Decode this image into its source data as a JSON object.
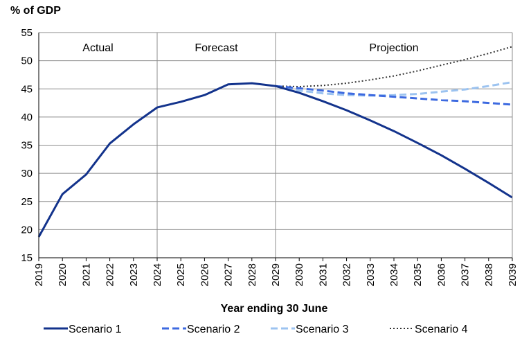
{
  "chart_data": {
    "type": "line",
    "ylabel": "% of GDP",
    "xlabel": "Year ending 30 June",
    "ylim": [
      15,
      55
    ],
    "yticks": [
      15,
      20,
      25,
      30,
      35,
      40,
      45,
      50,
      55
    ],
    "grid": true,
    "legend": "bottom",
    "categories": [
      "2019",
      "2020",
      "2021",
      "2022",
      "2023",
      "2024",
      "2025",
      "2026",
      "2027",
      "2028",
      "2029",
      "2030",
      "2031",
      "2032",
      "2033",
      "2034",
      "2035",
      "2036",
      "2037",
      "2038",
      "2039"
    ],
    "regions": [
      {
        "label": "Actual",
        "from": "2019",
        "to": "2024"
      },
      {
        "label": "Forecast",
        "from": "2024",
        "to": "2029"
      },
      {
        "label": "Projection",
        "from": "2029",
        "to": "2039"
      }
    ],
    "series": [
      {
        "name": "Scenario 1",
        "color": "#13338c",
        "dash": "solid",
        "x": [
          "2019",
          "2020",
          "2021",
          "2022",
          "2023",
          "2024",
          "2025",
          "2026",
          "2027",
          "2028",
          "2029",
          "2030",
          "2031",
          "2032",
          "2033",
          "2034",
          "2035",
          "2036",
          "2037",
          "2038",
          "2039"
        ],
        "values": [
          18.7,
          26.3,
          29.8,
          35.3,
          38.7,
          41.7,
          42.7,
          43.9,
          45.8,
          46.0,
          45.5,
          44.3,
          42.8,
          41.2,
          39.4,
          37.5,
          35.4,
          33.2,
          30.8,
          28.3,
          25.7
        ]
      },
      {
        "name": "Scenario 2",
        "color": "#3d6ae0",
        "dash": "dashed",
        "x": [
          "2029",
          "2030",
          "2031",
          "2032",
          "2033",
          "2034",
          "2035",
          "2036",
          "2037",
          "2038",
          "2039"
        ],
        "values": [
          45.5,
          45.1,
          44.7,
          44.2,
          43.9,
          43.6,
          43.3,
          43.0,
          42.8,
          42.5,
          42.2
        ]
      },
      {
        "name": "Scenario 3",
        "color": "#9cc3f0",
        "dash": "dashed",
        "x": [
          "2029",
          "2030",
          "2031",
          "2032",
          "2033",
          "2034",
          "2035",
          "2036",
          "2037",
          "2038",
          "2039"
        ],
        "values": [
          45.5,
          44.7,
          44.2,
          43.9,
          43.8,
          43.9,
          44.1,
          44.5,
          44.9,
          45.5,
          46.2
        ]
      },
      {
        "name": "Scenario 4",
        "color": "#333333",
        "dash": "dotted",
        "x": [
          "2029",
          "2030",
          "2031",
          "2032",
          "2033",
          "2034",
          "2035",
          "2036",
          "2037",
          "2038",
          "2039"
        ],
        "values": [
          45.5,
          45.4,
          45.6,
          46.0,
          46.6,
          47.3,
          48.2,
          49.2,
          50.2,
          51.3,
          52.5
        ]
      }
    ]
  }
}
